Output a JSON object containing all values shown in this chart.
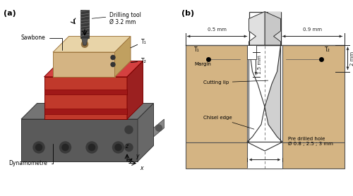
{
  "fig_width": 5.0,
  "fig_height": 2.78,
  "dpi": 100,
  "bg_color": "#ffffff",
  "panel_a_label": "(a)",
  "panel_b_label": "(b)",
  "ann_a": {
    "drilling_tool": "Drilling tool\nØ 3.2 mm",
    "sawbone": "Sawbone",
    "T1": "T₁",
    "T2": "T₂",
    "dynamometre": "Dynamometre"
  },
  "ann_b": {
    "T1": "T₁",
    "T2": "T₂",
    "margin": "Margin",
    "cutting_lip": "Cutting lip",
    "chisel_edge": "Chisel edge",
    "pre_drilled": "Pre drilled hole\nØ 0.8 ; 2.5 ; 3 mm",
    "dim_05": "0.5 mm",
    "dim_09": "0.9 mm",
    "dim_15": "1.5 mm",
    "dim_2": "2 mm"
  },
  "sawbone_color": "#d4b483",
  "sawbone_top": "#e8d4a8",
  "sawbone_right": "#c0a060",
  "fixture_front": "#c0392b",
  "fixture_top": "#d44040",
  "fixture_right": "#9b2020",
  "dyn_front": "#5a5a5a",
  "dyn_top": "#747474",
  "dyn_side": "#686868",
  "bone_fill": "#d4b483",
  "drill_body": "#e8e8e8",
  "drill_shadow": "#b0b0b0"
}
